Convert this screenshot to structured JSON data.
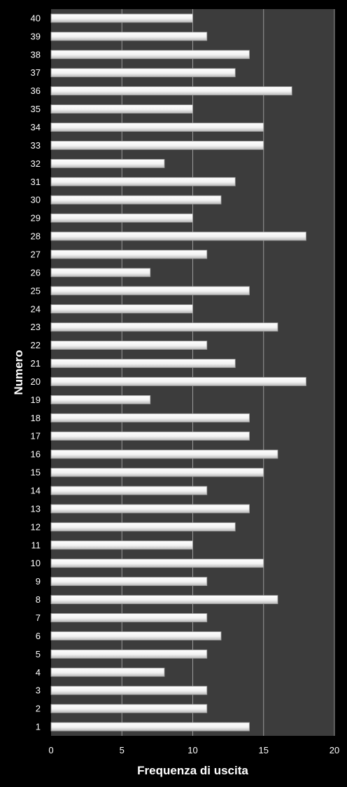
{
  "chart_data": {
    "type": "bar",
    "orientation": "horizontal",
    "categories": [
      "1",
      "2",
      "3",
      "4",
      "5",
      "6",
      "7",
      "8",
      "9",
      "10",
      "11",
      "12",
      "13",
      "14",
      "15",
      "16",
      "17",
      "18",
      "19",
      "20",
      "21",
      "22",
      "23",
      "24",
      "25",
      "26",
      "27",
      "28",
      "29",
      "30",
      "31",
      "32",
      "33",
      "34",
      "35",
      "36",
      "37",
      "38",
      "39",
      "40"
    ],
    "values": [
      14,
      11,
      11,
      8,
      11,
      12,
      11,
      16,
      11,
      15,
      10,
      13,
      14,
      11,
      15,
      16,
      14,
      14,
      7,
      18,
      13,
      11,
      16,
      10,
      14,
      7,
      11,
      18,
      10,
      12,
      13,
      8,
      15,
      15,
      10,
      17,
      13,
      14,
      11,
      10
    ],
    "xlabel": "Frequenza di uscita",
    "ylabel": "Numero",
    "xlim": [
      0,
      20
    ],
    "xticks": [
      "0",
      "5",
      "10",
      "15",
      "20"
    ],
    "grid": "vertical",
    "legend": "none"
  },
  "colors": {
    "background": "#000000",
    "plot_area": "#3c3c3c",
    "bar_fill": "#ffffff",
    "bar_edge": "#9a9a9a",
    "gridline": "#9a9a9a",
    "text": "#ffffff"
  }
}
